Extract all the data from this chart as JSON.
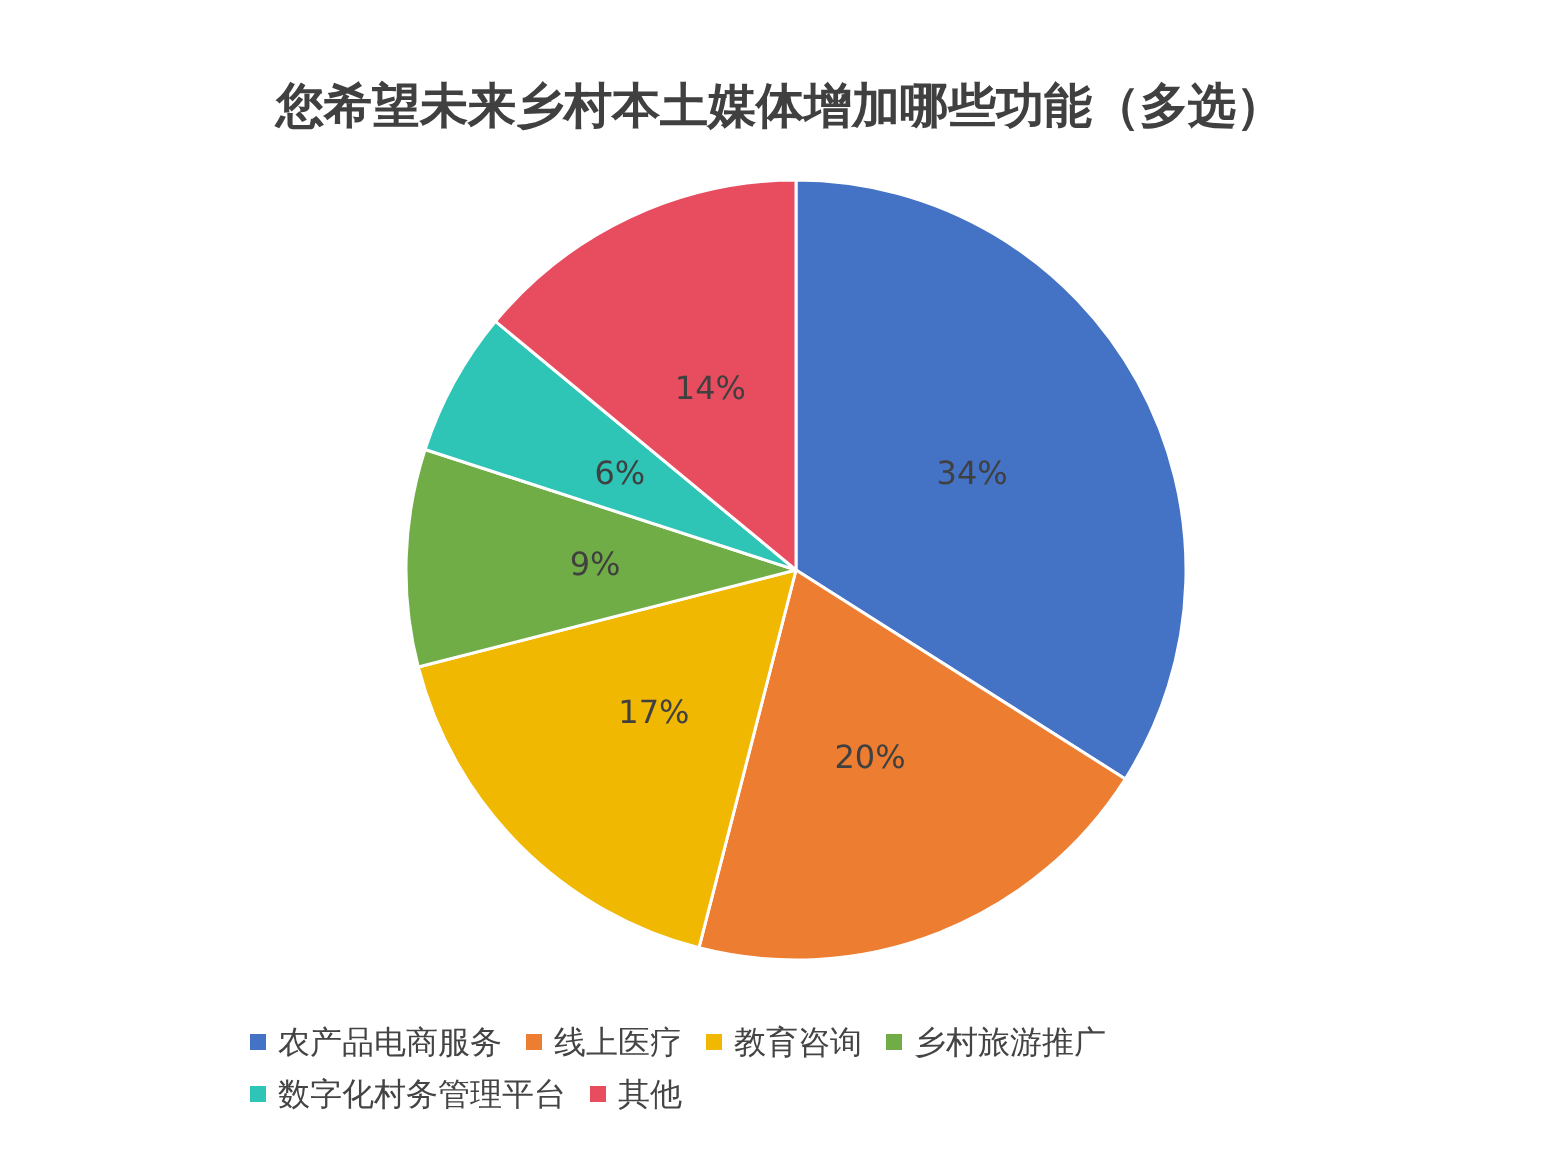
{
  "chart_data": {
    "type": "pie",
    "title": "您希望未来乡村本土媒体增加哪些功能（多选）",
    "categories": [
      "农产品电商服务",
      "线上医疗",
      "教育咨询",
      "乡村旅游推广",
      "数字化村务管理平台",
      "其他"
    ],
    "values": [
      34,
      20,
      17,
      9,
      6,
      14
    ],
    "colors": [
      "#4472c4",
      "#ed7d31",
      "#f0b800",
      "#70ad47",
      "#2ec4b6",
      "#e84c5f"
    ],
    "value_labels": [
      "34%",
      "20%",
      "17%",
      "9%",
      "6%",
      "14%"
    ],
    "legend": "bottom"
  }
}
